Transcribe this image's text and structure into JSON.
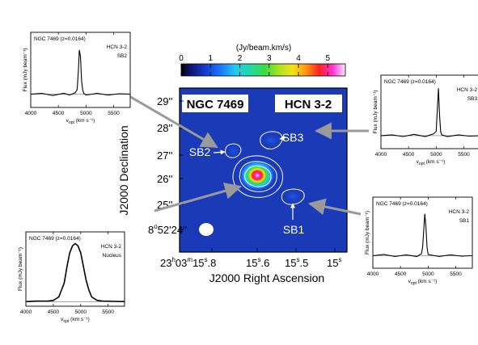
{
  "figure": {
    "colorbar": {
      "label": "(Jy/beam.km/s)",
      "ticks": [
        "0",
        "1",
        "2",
        "3",
        "4",
        "5"
      ],
      "range": [
        0,
        5.6
      ]
    },
    "map": {
      "title_left": "NGC 7469",
      "title_right": "HCN 3-2",
      "xlabel": "J2000 Right Ascension",
      "ylabel": "J2000 Declination",
      "ra_ticks": [
        {
          "h": "23",
          "hs": "h",
          "m": "03",
          "ms": "m",
          "s": "15",
          "ss": "s",
          "f": ".8"
        },
        {
          "s": "15",
          "ss": "s",
          "f": ".6"
        },
        {
          "s": "15",
          "ss": "s",
          "f": ".5"
        },
        {
          "s": "15",
          "ss": "s",
          "f": ""
        }
      ],
      "dec_ticks": [
        "29''",
        "28''",
        "27''",
        "26''",
        "25''"
      ],
      "dec_origin": {
        "deg": "8",
        "degsym": "o",
        "rest": "52'24''"
      },
      "regions": [
        "SB2",
        "SB3",
        "SB1"
      ]
    }
  },
  "chart_data": [
    {
      "type": "line",
      "title": "SB2",
      "header": "NGC 7469  (z=0.0164)",
      "line": "HCN 3-2",
      "region": "SB2",
      "xlabel_main": "v",
      "xlabel_sub": "opt",
      "xlabel_unit": "(km s⁻¹)",
      "ylabel": "Flux (mJy beam⁻¹)",
      "xlim": [
        4000,
        5800
      ],
      "ylim": [
        -3,
        14
      ],
      "xticks": [
        4000,
        4500,
        5000,
        5500
      ],
      "x": [
        4000,
        4200,
        4400,
        4600,
        4700,
        4800,
        4840,
        4860,
        4880,
        4900,
        4920,
        4940,
        4960,
        5000,
        5200,
        5400,
        5600,
        5800
      ],
      "values": [
        0,
        0.2,
        -0.3,
        0.2,
        -0.2,
        0.3,
        1,
        5,
        10,
        8.5,
        3,
        1,
        0.2,
        -0.2,
        0.2,
        -0.2,
        0.1,
        0
      ]
    },
    {
      "type": "line",
      "title": "SB3",
      "header": "NGC 7469  (z=0.0164)",
      "line": "HCN 3-2",
      "region": "SB3",
      "xlabel_main": "v",
      "xlabel_sub": "opt",
      "xlabel_unit": "(km s⁻¹)",
      "ylabel": "Flux (mJy beam⁻¹)",
      "xlim": [
        4000,
        5800
      ],
      "ylim": [
        -3,
        14
      ],
      "xticks": [
        4000,
        4500,
        5000,
        5500
      ],
      "x": [
        4000,
        4200,
        4400,
        4600,
        4800,
        4950,
        5000,
        5020,
        5040,
        5060,
        5080,
        5100,
        5200,
        5400,
        5600,
        5800
      ],
      "values": [
        0,
        0.2,
        -0.2,
        0.3,
        -0.2,
        0.4,
        1,
        6,
        11,
        5,
        1,
        0.2,
        -0.2,
        0.2,
        -0.1,
        0
      ]
    },
    {
      "type": "line",
      "title": "SB1",
      "header": "NGC 7469  (z=0.0164)",
      "line": "HCN 3-2",
      "region": "SB1",
      "xlabel_main": "v",
      "xlabel_sub": "opt",
      "xlabel_unit": "(km s⁻¹)",
      "ylabel": "Flux (mJy beam⁻¹)",
      "xlim": [
        4000,
        5800
      ],
      "ylim": [
        -3,
        14
      ],
      "xticks": [
        4000,
        4500,
        5000,
        5500
      ],
      "x": [
        4000,
        4200,
        4400,
        4600,
        4800,
        4880,
        4900,
        4920,
        4940,
        4960,
        4980,
        5000,
        5200,
        5400,
        5600,
        5800
      ],
      "values": [
        0,
        0.3,
        -0.2,
        0.2,
        -0.2,
        0.5,
        2,
        6,
        10,
        7,
        2,
        0.3,
        -0.2,
        0.2,
        -0.1,
        0
      ]
    },
    {
      "type": "line",
      "title": "Nucleus",
      "header": "NGC 7469  (z=0.0164)",
      "line": "HCN 3-2",
      "region": "Nucleus",
      "xlabel_main": "v",
      "xlabel_sub": "opt",
      "xlabel_unit": "(km s⁻¹)",
      "ylabel": "Flux (mJy beam⁻¹)",
      "xlim": [
        4000,
        5800
      ],
      "ylim": [
        -2,
        30
      ],
      "xticks": [
        4000,
        4500,
        5000,
        5500
      ],
      "x": [
        4000,
        4200,
        4400,
        4500,
        4600,
        4700,
        4750,
        4800,
        4850,
        4900,
        4950,
        5000,
        5050,
        5100,
        5150,
        5200,
        5300,
        5400,
        5600,
        5800
      ],
      "values": [
        0,
        0.2,
        0.2,
        0.5,
        2,
        8,
        15,
        21,
        24,
        25,
        24,
        21,
        15,
        9,
        5,
        2,
        0.5,
        0.2,
        0.1,
        0
      ]
    }
  ]
}
